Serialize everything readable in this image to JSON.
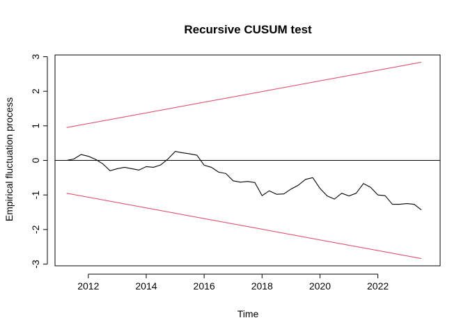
{
  "chart_data": {
    "type": "line",
    "title": "Recursive CUSUM test",
    "xlabel": "Time",
    "ylabel": "Empirical fluctuation process",
    "xlim": [
      2010.85,
      2024.15
    ],
    "ylim": [
      -3.05,
      3.05
    ],
    "x_ticks": [
      2012,
      2014,
      2016,
      2018,
      2020,
      2022
    ],
    "y_ticks": [
      -3,
      -2,
      -1,
      0,
      1,
      2,
      3
    ],
    "x_tick_labels": [
      "2012",
      "2014",
      "2016",
      "2018",
      "2020",
      "2022"
    ],
    "y_tick_labels": [
      "-3",
      "-2",
      "-1",
      "0",
      "1",
      "2",
      "3"
    ],
    "grid": false,
    "series": [
      {
        "color": "#000000",
        "x": [
          2011.25,
          2011.5,
          2011.75,
          2012.0,
          2012.25,
          2012.5,
          2012.75,
          2013.0,
          2013.25,
          2013.5,
          2013.75,
          2014.0,
          2014.25,
          2014.5,
          2014.75,
          2015.0,
          2015.25,
          2015.5,
          2015.75,
          2016.0,
          2016.25,
          2016.5,
          2016.75,
          2017.0,
          2017.25,
          2017.5,
          2017.75,
          2018.0,
          2018.25,
          2018.5,
          2018.75,
          2019.0,
          2019.25,
          2019.5,
          2019.75,
          2020.0,
          2020.25,
          2020.5,
          2020.75,
          2021.0,
          2021.25,
          2021.5,
          2021.75,
          2022.0,
          2022.25,
          2022.5,
          2022.75,
          2023.0,
          2023.25,
          2023.5
        ],
        "y": [
          0.0,
          0.04,
          0.17,
          0.12,
          0.03,
          -0.1,
          -0.3,
          -0.24,
          -0.2,
          -0.24,
          -0.28,
          -0.18,
          -0.2,
          -0.13,
          0.04,
          0.26,
          0.22,
          0.19,
          0.15,
          -0.14,
          -0.2,
          -0.34,
          -0.38,
          -0.59,
          -0.63,
          -0.61,
          -0.64,
          -1.02,
          -0.88,
          -0.98,
          -0.97,
          -0.83,
          -0.72,
          -0.55,
          -0.5,
          -0.81,
          -1.03,
          -1.12,
          -0.95,
          -1.03,
          -0.95,
          -0.67,
          -0.78,
          -1.0,
          -1.02,
          -1.27,
          -1.27,
          -1.25,
          -1.27,
          -1.43
        ]
      },
      {
        "color": "#DF536B",
        "x": [
          2011.25,
          2023.5
        ],
        "y": [
          0.95,
          2.84
        ]
      },
      {
        "color": "#DF536B",
        "x": [
          2011.25,
          2023.5
        ],
        "y": [
          -0.95,
          -2.84
        ]
      }
    ],
    "hlines": [
      {
        "y": 0,
        "color": "#000000"
      }
    ]
  }
}
